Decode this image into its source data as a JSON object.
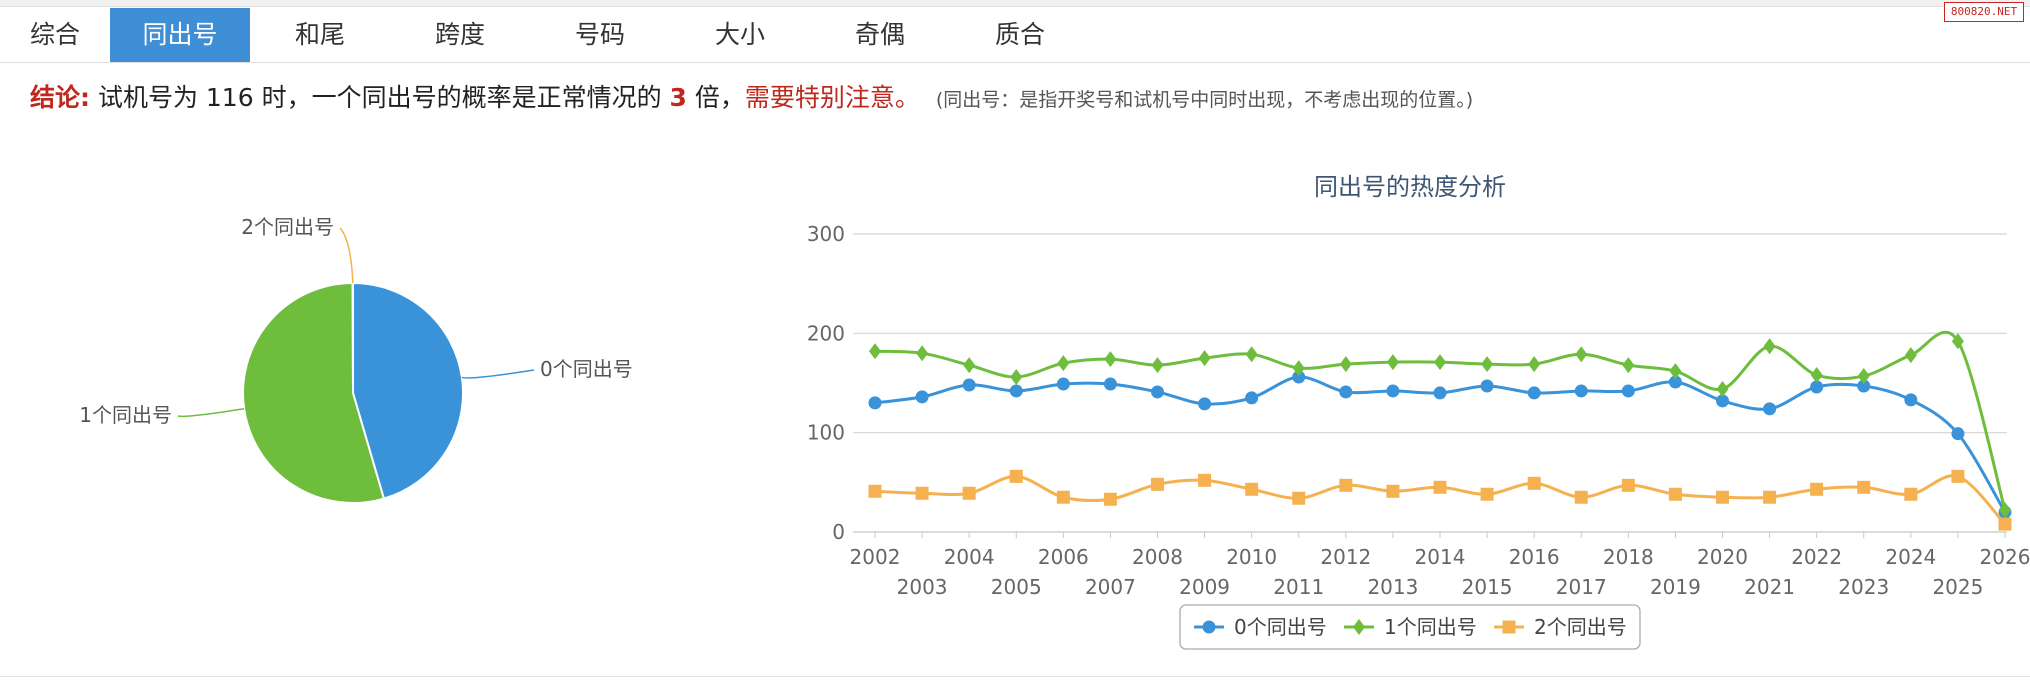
{
  "watermark": "800820.NET",
  "tabs": [
    "综合",
    "同出号",
    "和尾",
    "跨度",
    "号码",
    "大小",
    "奇偶",
    "质合"
  ],
  "active_tab": 1,
  "conclusion": {
    "label": "结论:",
    "text_before": "试机号为 116 时，一个同出号的概率是正常情况的",
    "multiplier": "3",
    "text_after": "倍，",
    "warning": "需要特别注意。",
    "note": "(同出号：是指开奖号和试机号中同时出现，不考虑出现的位置。)"
  },
  "colors": {
    "blue": "#3a93d9",
    "green": "#6fbd3d",
    "orange": "#f5b04f",
    "red": "#c0281d"
  },
  "chart_data": [
    {
      "type": "pie",
      "slices": [
        {
          "label": "0个同出号",
          "value": 45.5,
          "color": "#3a93d9"
        },
        {
          "label": "1个同出号",
          "value": 54.5,
          "color": "#6fbd3d"
        },
        {
          "label": "2个同出号",
          "value": 0.05,
          "color": "#f5b04f"
        }
      ]
    },
    {
      "type": "line",
      "title": "同出号的热度分析",
      "x": [
        "2002",
        "2003",
        "2004",
        "2005",
        "2006",
        "2007",
        "2008",
        "2009",
        "2010",
        "2011",
        "2012",
        "2013",
        "2014",
        "2015",
        "2016",
        "2017",
        "2018",
        "2019",
        "2020",
        "2021",
        "2022",
        "2023",
        "2024",
        "2025",
        "2026"
      ],
      "ylim": [
        0,
        300
      ],
      "yticks": [
        0,
        100,
        200,
        300
      ],
      "grid": true,
      "legend_position": "bottom",
      "series": [
        {
          "name": "0个同出号",
          "color": "#3a93d9",
          "marker": "circle",
          "values": [
            130,
            136,
            148,
            142,
            149,
            149,
            141,
            129,
            135,
            156,
            141,
            142,
            140,
            147,
            140,
            142,
            142,
            151,
            132,
            124,
            146,
            147,
            133,
            99,
            20
          ]
        },
        {
          "name": "1个同出号",
          "color": "#6fbd3d",
          "marker": "diamond",
          "values": [
            182,
            180,
            168,
            156,
            170,
            174,
            168,
            175,
            179,
            165,
            169,
            171,
            171,
            169,
            169,
            179,
            168,
            162,
            144,
            187,
            158,
            157,
            178,
            192,
            22
          ]
        },
        {
          "name": "2个同出号",
          "color": "#f5b04f",
          "marker": "square",
          "values": [
            41,
            39,
            39,
            56,
            35,
            33,
            48,
            52,
            43,
            34,
            47,
            41,
            45,
            38,
            49,
            35,
            47,
            38,
            35,
            35,
            43,
            45,
            38,
            56,
            8
          ]
        }
      ]
    }
  ]
}
